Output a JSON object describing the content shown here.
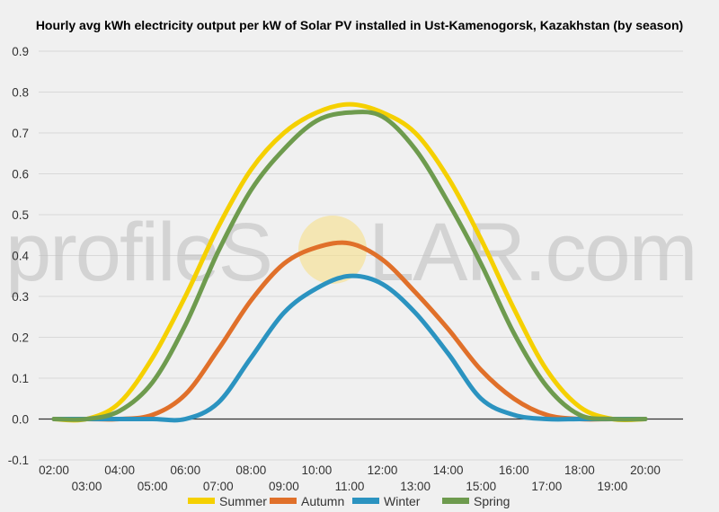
{
  "watermark": {
    "left": "profileS",
    "right": "LAR.com",
    "sun_color": "#f6e08a"
  },
  "chart_data": {
    "type": "line",
    "title": "Hourly avg kWh electricity output per kW of Solar PV installed in Ust-Kamenogorsk, Kazakhstan (by season)",
    "xlabel": "",
    "ylabel": "",
    "x": [
      "02:00",
      "03:00",
      "04:00",
      "05:00",
      "06:00",
      "07:00",
      "08:00",
      "09:00",
      "10:00",
      "11:00",
      "12:00",
      "13:00",
      "14:00",
      "15:00",
      "16:00",
      "17:00",
      "18:00",
      "19:00",
      "20:00"
    ],
    "ylim": [
      -0.1,
      0.9
    ],
    "yticks": [
      "-0.1",
      "0.0",
      "0.1",
      "0.2",
      "0.3",
      "0.4",
      "0.5",
      "0.6",
      "0.7",
      "0.8",
      "0.9"
    ],
    "grid": true,
    "legend_position": "bottom",
    "series": [
      {
        "name": "Summer",
        "color": "#f5d000",
        "values": [
          0,
          0,
          0.04,
          0.15,
          0.3,
          0.47,
          0.61,
          0.7,
          0.75,
          0.77,
          0.75,
          0.7,
          0.59,
          0.44,
          0.27,
          0.12,
          0.03,
          0,
          0
        ]
      },
      {
        "name": "Autumn",
        "color": "#e0702a",
        "values": [
          0,
          0,
          0,
          0.01,
          0.06,
          0.17,
          0.29,
          0.38,
          0.42,
          0.43,
          0.39,
          0.31,
          0.22,
          0.12,
          0.05,
          0.01,
          0,
          0,
          0
        ]
      },
      {
        "name": "Winter",
        "color": "#2b93c0",
        "values": [
          0,
          0,
          0,
          0,
          0,
          0.04,
          0.15,
          0.26,
          0.32,
          0.35,
          0.33,
          0.26,
          0.16,
          0.05,
          0.01,
          0,
          0,
          0,
          0
        ]
      },
      {
        "name": "Spring",
        "color": "#6e9b4e",
        "values": [
          0,
          0,
          0.02,
          0.09,
          0.23,
          0.41,
          0.56,
          0.66,
          0.73,
          0.75,
          0.74,
          0.66,
          0.53,
          0.38,
          0.21,
          0.08,
          0.01,
          0,
          0
        ]
      }
    ]
  }
}
